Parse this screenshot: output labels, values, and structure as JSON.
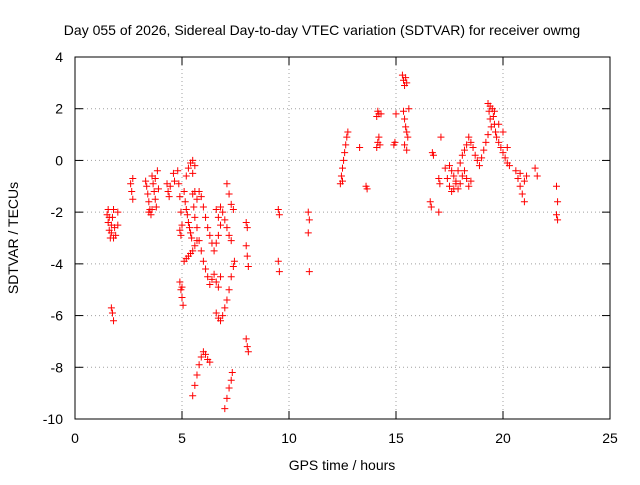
{
  "chart_data": {
    "type": "scatter",
    "title": "Day 055 of 2026, Sidereal Day-to-day VTEC variation (SDTVAR) for receiver owmg",
    "xlabel": "GPS time / hours",
    "ylabel": "SDTVAR / TECUs",
    "xlim": [
      0,
      25
    ],
    "ylim": [
      -10,
      4
    ],
    "x_ticks": [
      0,
      5,
      10,
      15,
      20,
      25
    ],
    "y_ticks": [
      -10,
      -8,
      -6,
      -4,
      -2,
      0,
      2,
      4
    ],
    "x_tick_labels": [
      "0",
      "5",
      "10",
      "15",
      "20",
      "25"
    ],
    "y_tick_labels": [
      "-10",
      "-8",
      "-6",
      "-4",
      "-2",
      "0",
      "2",
      "4"
    ],
    "grid": true,
    "marker": "+",
    "color": "#ff0000",
    "series": [
      {
        "name": "SDTVAR",
        "points": [
          [
            1.5,
            -2.1
          ],
          [
            1.55,
            -2.4
          ],
          [
            1.6,
            -2.7
          ],
          [
            1.65,
            -3.0
          ],
          [
            1.7,
            -2.5
          ],
          [
            1.75,
            -2.2
          ],
          [
            1.8,
            -1.9
          ],
          [
            1.85,
            -2.6
          ],
          [
            1.9,
            -2.9
          ],
          [
            1.55,
            -1.9
          ],
          [
            1.6,
            -2.2
          ],
          [
            1.7,
            -2.8
          ],
          [
            1.8,
            -3.0
          ],
          [
            1.7,
            -5.7
          ],
          [
            1.75,
            -5.9
          ],
          [
            1.8,
            -6.2
          ],
          [
            2.0,
            -2.0
          ],
          [
            2.0,
            -2.5
          ],
          [
            2.6,
            -0.9
          ],
          [
            2.65,
            -1.2
          ],
          [
            2.7,
            -1.5
          ],
          [
            2.7,
            -0.7
          ],
          [
            3.3,
            -0.8
          ],
          [
            3.35,
            -1.0
          ],
          [
            3.4,
            -1.3
          ],
          [
            3.45,
            -1.6
          ],
          [
            3.5,
            -1.9
          ],
          [
            3.55,
            -2.1
          ],
          [
            3.6,
            -0.6
          ],
          [
            3.65,
            -0.9
          ],
          [
            3.7,
            -1.2
          ],
          [
            3.75,
            -1.5
          ],
          [
            3.8,
            -1.8
          ],
          [
            3.85,
            -0.4
          ],
          [
            3.9,
            -1.1
          ],
          [
            3.45,
            -2.0
          ],
          [
            3.6,
            -1.9
          ],
          [
            3.75,
            -0.7
          ],
          [
            4.3,
            -0.9
          ],
          [
            4.35,
            -1.2
          ],
          [
            4.4,
            -1.4
          ],
          [
            4.45,
            -1.0
          ],
          [
            4.6,
            -0.5
          ],
          [
            4.65,
            -0.8
          ],
          [
            4.8,
            -0.4
          ],
          [
            4.85,
            -0.9
          ],
          [
            4.9,
            -1.4
          ],
          [
            4.95,
            -2.0
          ],
          [
            5.0,
            -2.5
          ],
          [
            4.95,
            -2.9
          ],
          [
            4.9,
            -2.7
          ],
          [
            5.1,
            -1.2
          ],
          [
            5.15,
            -1.6
          ],
          [
            5.2,
            -1.9
          ],
          [
            5.25,
            -2.1
          ],
          [
            5.3,
            -2.4
          ],
          [
            5.35,
            -2.6
          ],
          [
            5.4,
            -2.8
          ],
          [
            5.45,
            -3.0
          ],
          [
            5.5,
            -1.3
          ],
          [
            5.55,
            -1.8
          ],
          [
            5.6,
            -2.2
          ],
          [
            5.7,
            -2.6
          ],
          [
            5.8,
            -3.1
          ],
          [
            5.9,
            -3.5
          ],
          [
            6.0,
            -3.9
          ],
          [
            6.1,
            -4.2
          ],
          [
            6.2,
            -4.5
          ],
          [
            6.3,
            -4.8
          ],
          [
            6.4,
            -4.6
          ],
          [
            6.5,
            -4.4
          ],
          [
            6.6,
            -4.7
          ],
          [
            6.7,
            -4.9
          ],
          [
            6.8,
            -4.5
          ],
          [
            5.2,
            -0.6
          ],
          [
            5.3,
            -0.3
          ],
          [
            5.4,
            -0.1
          ],
          [
            5.5,
            0.0
          ],
          [
            5.6,
            -0.2
          ],
          [
            5.5,
            -0.5
          ],
          [
            4.9,
            -4.7
          ],
          [
            4.95,
            -5.0
          ],
          [
            5.0,
            -5.3
          ],
          [
            5.05,
            -5.6
          ],
          [
            5.0,
            -4.9
          ],
          [
            5.1,
            -3.9
          ],
          [
            5.2,
            -3.8
          ],
          [
            5.3,
            -3.7
          ],
          [
            5.4,
            -3.6
          ],
          [
            5.5,
            -3.5
          ],
          [
            5.6,
            -3.3
          ],
          [
            5.7,
            -3.1
          ],
          [
            5.6,
            -1.2
          ],
          [
            5.7,
            -1.5
          ],
          [
            5.8,
            -1.2
          ],
          [
            5.9,
            -1.4
          ],
          [
            6.0,
            -1.8
          ],
          [
            6.1,
            -2.2
          ],
          [
            6.2,
            -2.6
          ],
          [
            6.3,
            -2.9
          ],
          [
            6.4,
            -3.2
          ],
          [
            6.5,
            -3.5
          ],
          [
            6.6,
            -3.2
          ],
          [
            6.7,
            -2.9
          ],
          [
            6.8,
            -2.5
          ],
          [
            6.9,
            -2.0
          ],
          [
            7.0,
            -2.3
          ],
          [
            7.1,
            -2.6
          ],
          [
            7.2,
            -2.9
          ],
          [
            7.3,
            -3.1
          ],
          [
            6.6,
            -5.9
          ],
          [
            6.7,
            -6.1
          ],
          [
            6.8,
            -6.2
          ],
          [
            6.9,
            -6.0
          ],
          [
            7.0,
            -5.7
          ],
          [
            7.1,
            -5.4
          ],
          [
            7.2,
            -5.0
          ],
          [
            7.3,
            -4.5
          ],
          [
            7.4,
            -4.1
          ],
          [
            7.45,
            -3.9
          ],
          [
            5.5,
            -9.1
          ],
          [
            5.6,
            -8.7
          ],
          [
            5.7,
            -8.3
          ],
          [
            5.8,
            -7.9
          ],
          [
            5.9,
            -7.6
          ],
          [
            6.0,
            -7.4
          ],
          [
            6.1,
            -7.5
          ],
          [
            6.2,
            -7.7
          ],
          [
            6.3,
            -7.8
          ],
          [
            7.0,
            -9.6
          ],
          [
            7.1,
            -9.2
          ],
          [
            7.2,
            -8.8
          ],
          [
            7.3,
            -8.5
          ],
          [
            7.35,
            -8.2
          ],
          [
            6.6,
            -1.9
          ],
          [
            6.7,
            -2.2
          ],
          [
            6.8,
            -1.8
          ],
          [
            7.1,
            -0.9
          ],
          [
            7.2,
            -1.3
          ],
          [
            7.3,
            -1.7
          ],
          [
            7.4,
            -1.9
          ],
          [
            8.0,
            -2.4
          ],
          [
            8.05,
            -2.6
          ],
          [
            8.0,
            -3.3
          ],
          [
            8.05,
            -3.7
          ],
          [
            8.1,
            -4.1
          ],
          [
            8.0,
            -6.9
          ],
          [
            8.05,
            -7.2
          ],
          [
            8.1,
            -7.4
          ],
          [
            9.5,
            -1.9
          ],
          [
            9.55,
            -2.1
          ],
          [
            9.5,
            -3.9
          ],
          [
            9.55,
            -4.3
          ],
          [
            10.9,
            -2.0
          ],
          [
            10.95,
            -2.3
          ],
          [
            10.9,
            -2.8
          ],
          [
            10.95,
            -4.3
          ],
          [
            12.4,
            -0.9
          ],
          [
            12.45,
            -0.6
          ],
          [
            12.5,
            -0.3
          ],
          [
            12.55,
            0.0
          ],
          [
            12.6,
            0.3
          ],
          [
            12.65,
            0.6
          ],
          [
            12.7,
            0.9
          ],
          [
            12.75,
            1.1
          ],
          [
            12.5,
            -0.8
          ],
          [
            13.3,
            0.5
          ],
          [
            13.6,
            -1.0
          ],
          [
            13.65,
            -1.1
          ],
          [
            14.1,
            0.5
          ],
          [
            14.15,
            0.7
          ],
          [
            14.2,
            0.9
          ],
          [
            14.25,
            0.6
          ],
          [
            14.1,
            1.7
          ],
          [
            14.15,
            1.9
          ],
          [
            14.2,
            1.8
          ],
          [
            14.3,
            1.8
          ],
          [
            14.9,
            0.6
          ],
          [
            14.95,
            0.7
          ],
          [
            15.0,
            1.8
          ],
          [
            15.3,
            3.3
          ],
          [
            15.35,
            3.1
          ],
          [
            15.4,
            2.9
          ],
          [
            15.45,
            3.2
          ],
          [
            15.5,
            3.0
          ],
          [
            15.35,
            1.9
          ],
          [
            15.4,
            1.6
          ],
          [
            15.45,
            1.3
          ],
          [
            15.5,
            1.1
          ],
          [
            15.55,
            0.9
          ],
          [
            15.4,
            0.6
          ],
          [
            15.5,
            0.4
          ],
          [
            15.6,
            2.0
          ],
          [
            16.6,
            -1.6
          ],
          [
            16.65,
            -1.8
          ],
          [
            16.7,
            0.3
          ],
          [
            16.75,
            0.2
          ],
          [
            17.0,
            -0.7
          ],
          [
            17.05,
            -0.9
          ],
          [
            17.0,
            -2.0
          ],
          [
            17.1,
            0.9
          ],
          [
            17.3,
            -0.3
          ],
          [
            17.4,
            -0.7
          ],
          [
            17.5,
            -1.0
          ],
          [
            17.6,
            -1.2
          ],
          [
            17.7,
            -1.1
          ],
          [
            17.8,
            -0.8
          ],
          [
            17.9,
            -0.4
          ],
          [
            18.0,
            -0.1
          ],
          [
            18.1,
            0.2
          ],
          [
            18.2,
            0.4
          ],
          [
            18.3,
            0.6
          ],
          [
            18.4,
            0.9
          ],
          [
            18.5,
            0.7
          ],
          [
            18.6,
            0.5
          ],
          [
            18.7,
            0.2
          ],
          [
            18.8,
            0.0
          ],
          [
            18.9,
            -0.2
          ],
          [
            19.0,
            0.1
          ],
          [
            19.1,
            0.4
          ],
          [
            19.2,
            0.7
          ],
          [
            19.3,
            1.0
          ],
          [
            17.5,
            -0.2
          ],
          [
            17.6,
            -0.4
          ],
          [
            17.7,
            -0.6
          ],
          [
            17.8,
            -0.9
          ],
          [
            17.9,
            -1.1
          ],
          [
            18.0,
            -0.9
          ],
          [
            18.1,
            -0.6
          ],
          [
            18.2,
            -0.4
          ],
          [
            18.3,
            -0.7
          ],
          [
            18.4,
            -1.0
          ],
          [
            18.5,
            -0.8
          ],
          [
            19.3,
            2.2
          ],
          [
            19.35,
            1.9
          ],
          [
            19.4,
            1.6
          ],
          [
            19.45,
            1.3
          ],
          [
            19.5,
            2.0
          ],
          [
            19.55,
            1.7
          ],
          [
            19.6,
            1.4
          ],
          [
            19.65,
            1.1
          ],
          [
            19.7,
            0.9
          ],
          [
            19.8,
            0.7
          ],
          [
            19.9,
            0.5
          ],
          [
            20.0,
            0.3
          ],
          [
            20.1,
            0.1
          ],
          [
            20.2,
            -0.1
          ],
          [
            20.3,
            -0.2
          ],
          [
            19.4,
            2.1
          ],
          [
            19.6,
            1.9
          ],
          [
            19.8,
            1.4
          ],
          [
            20.0,
            1.1
          ],
          [
            20.2,
            0.5
          ],
          [
            20.6,
            -0.4
          ],
          [
            20.7,
            -0.7
          ],
          [
            20.8,
            -1.0
          ],
          [
            20.9,
            -1.3
          ],
          [
            21.0,
            -1.6
          ],
          [
            20.8,
            -0.5
          ],
          [
            21.0,
            -0.8
          ],
          [
            21.1,
            -0.6
          ],
          [
            21.5,
            -0.3
          ],
          [
            21.6,
            -0.6
          ],
          [
            22.5,
            -1.0
          ],
          [
            22.55,
            -1.6
          ],
          [
            22.5,
            -2.1
          ],
          [
            22.55,
            -2.3
          ]
        ]
      }
    ]
  }
}
